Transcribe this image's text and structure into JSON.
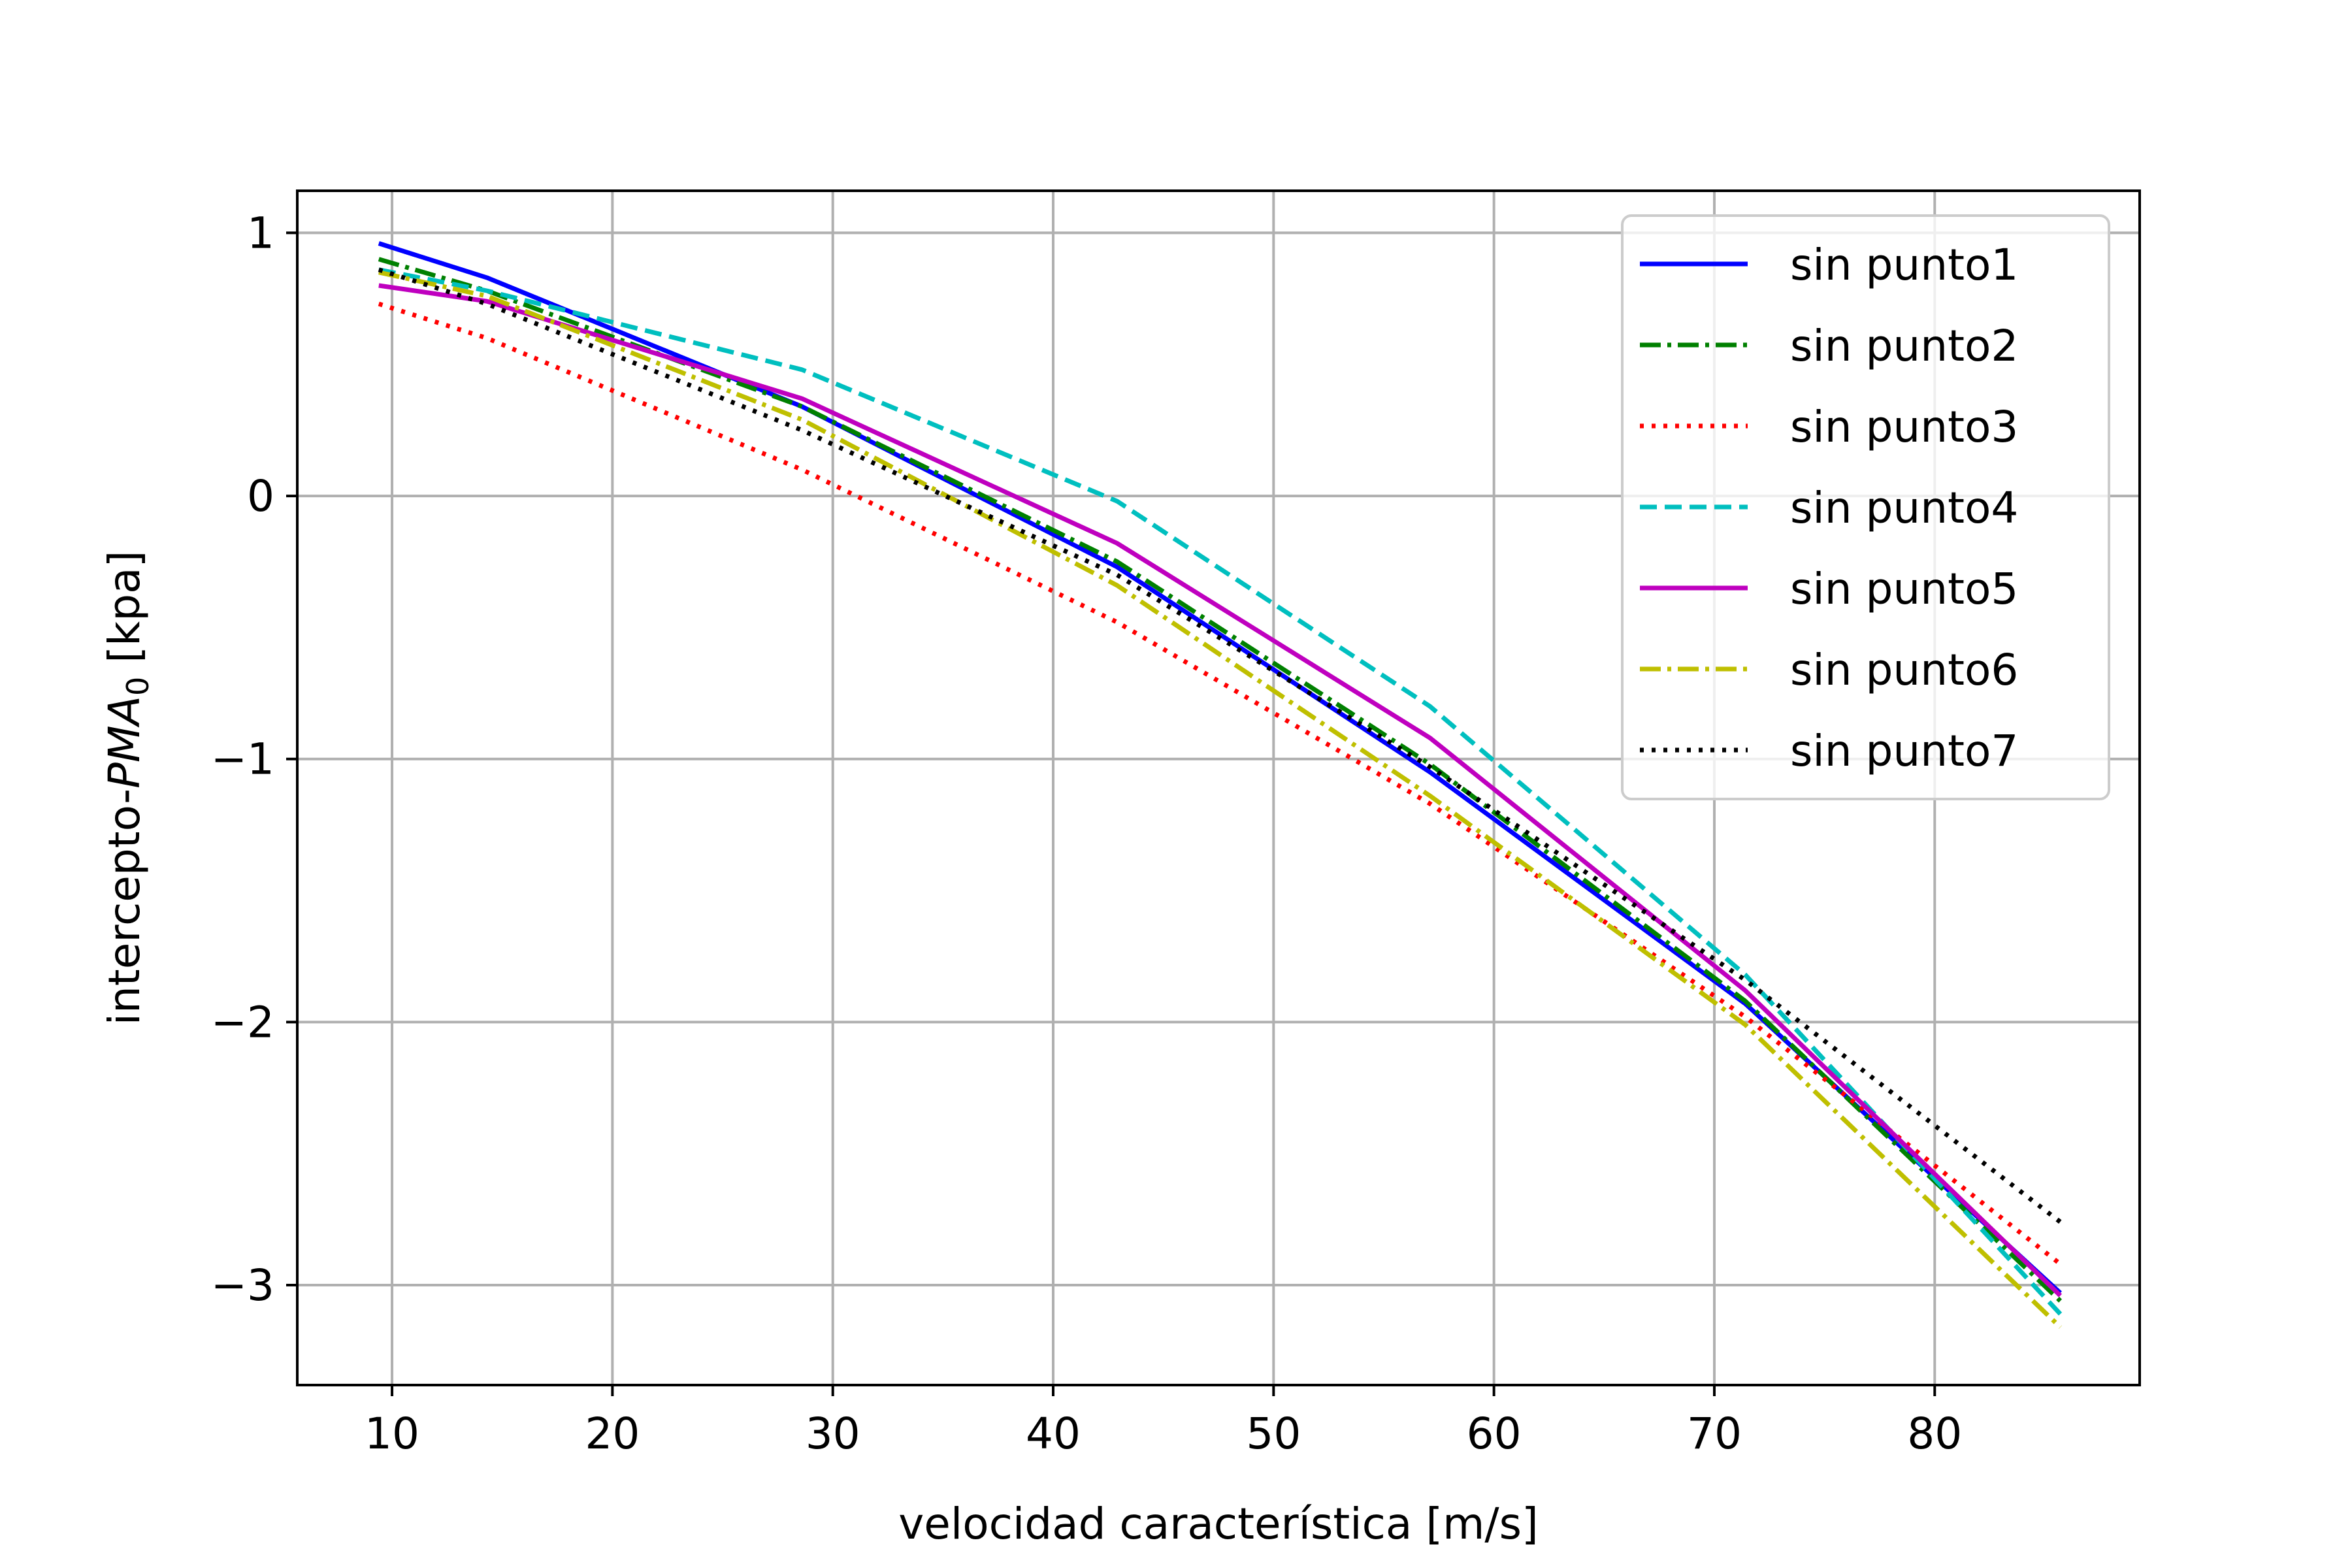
{
  "chart_data": {
    "type": "line",
    "title": "",
    "xlabel": "velocidad característica [m/s]",
    "ylabel": {
      "prefix": "intercepto-",
      "italic": "PMA",
      "subscript": "0",
      "suffix": " [kpa]"
    },
    "xlim": [
      5.7,
      89.3
    ],
    "ylim": [
      -3.38,
      1.16
    ],
    "xticks": [
      10,
      20,
      30,
      40,
      50,
      60,
      70,
      80
    ],
    "yticks": [
      1,
      0,
      -1,
      -2,
      -3
    ],
    "xtick_labels": [
      "10",
      "20",
      "30",
      "40",
      "50",
      "60",
      "70",
      "80"
    ],
    "ytick_labels": [
      "1",
      "0",
      "−1",
      "−2",
      "−3"
    ],
    "grid": true,
    "legend_position": "top-right",
    "series": [
      {
        "name": "sin punto1",
        "color": "#0000ff",
        "style": "solid",
        "x": [
          9.4,
          14.3,
          28.6,
          42.9,
          57.1,
          71.4,
          85.7
        ],
        "y": [
          0.96,
          0.83,
          0.34,
          -0.27,
          -1.05,
          -1.93,
          -3.03
        ]
      },
      {
        "name": "sin punto2",
        "color": "#008000",
        "style": "dashdot",
        "x": [
          9.4,
          14.3,
          28.6,
          42.9,
          57.1,
          71.4,
          85.7
        ],
        "y": [
          0.9,
          0.78,
          0.34,
          -0.25,
          -1.02,
          -1.92,
          -3.06
        ]
      },
      {
        "name": "sin punto3",
        "color": "#ff0000",
        "style": "dotted",
        "x": [
          9.4,
          14.3,
          28.6,
          42.9,
          57.1,
          71.4,
          85.7
        ],
        "y": [
          0.73,
          0.6,
          0.1,
          -0.48,
          -1.17,
          -1.98,
          -2.92
        ]
      },
      {
        "name": "sin punto4",
        "color": "#00bfbf",
        "style": "dashed",
        "x": [
          9.4,
          14.3,
          28.6,
          42.9,
          57.1,
          71.4,
          85.7
        ],
        "y": [
          0.86,
          0.78,
          0.48,
          -0.02,
          -0.8,
          -1.82,
          -3.11
        ]
      },
      {
        "name": "sin punto5",
        "color": "#bf00bf",
        "style": "solid",
        "x": [
          9.4,
          14.3,
          28.6,
          42.9,
          57.1,
          71.4,
          85.7
        ],
        "y": [
          0.8,
          0.74,
          0.37,
          -0.18,
          -0.92,
          -1.88,
          -3.04
        ]
      },
      {
        "name": "sin punto6",
        "color": "#bfbf00",
        "style": "dashdot",
        "x": [
          9.4,
          14.3,
          28.6,
          42.9,
          57.1,
          71.4,
          85.7
        ],
        "y": [
          0.85,
          0.76,
          0.29,
          -0.34,
          -1.14,
          -2.01,
          -3.16
        ]
      },
      {
        "name": "sin punto7",
        "color": "#000000",
        "style": "dotted",
        "x": [
          9.4,
          14.3,
          28.6,
          42.9,
          57.1,
          71.4,
          85.7
        ],
        "y": [
          0.86,
          0.73,
          0.25,
          -0.3,
          -1.03,
          -1.84,
          -2.76
        ]
      }
    ]
  }
}
